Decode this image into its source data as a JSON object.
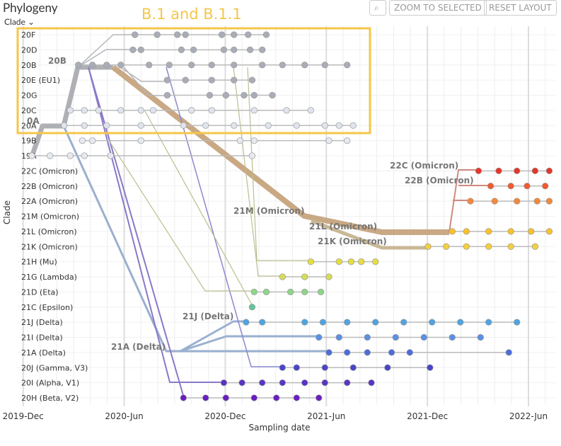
{
  "chart_data": {
    "type": "scatter",
    "title": "Phylogeny",
    "selector_label": "Clade",
    "buttons": [
      "ZOOM TO SELECTED",
      "RESET LAYOUT"
    ],
    "xlabel": "Sampling date",
    "ylabel": "Clade",
    "highlight_label": "B.1 and B.1.1",
    "branch_labels": [
      "20B",
      "0A",
      "21M (Omicron)",
      "21L (Omicron)",
      "21K (Omicron)",
      "22C (Omicron)",
      "22B (Omicron)",
      "21J (Delta)",
      "21A (Delta)"
    ],
    "xlim": [
      2019.89,
      2022.55
    ],
    "xticks": [
      {
        "value": 2019.917,
        "label": "2019-Dec"
      },
      {
        "value": 2020.417,
        "label": "2020-Jun"
      },
      {
        "value": 2020.917,
        "label": "2020-Dec"
      },
      {
        "value": 2021.417,
        "label": "2021-Jun"
      },
      {
        "value": 2021.917,
        "label": "2021-Dec"
      },
      {
        "value": 2022.417,
        "label": "2022-Jun"
      }
    ],
    "grid": true,
    "series": [
      {
        "name": "20F",
        "color": "#a9adb8",
        "x": [
          2020.47,
          2020.58,
          2020.68,
          2020.72,
          2020.9,
          2020.96,
          2021.03,
          2021.12
        ]
      },
      {
        "name": "20D",
        "color": "#a9adb8",
        "x": [
          2020.46,
          2020.5,
          2020.7,
          2020.76,
          2020.91,
          2020.96,
          2021.04,
          2021.1
        ]
      },
      {
        "name": "20B",
        "color": "#a9adb8",
        "x": [
          2020.19,
          2020.26,
          2020.33,
          2020.4,
          2020.54,
          2020.64,
          2020.75,
          2020.85,
          2020.96,
          2021.1,
          2021.2,
          2021.31,
          2021.41,
          2021.52
        ]
      },
      {
        "name": "20E (EU1)",
        "color": "#a9adb8",
        "x": [
          2020.63,
          2020.72,
          2020.85,
          2020.96,
          2021.05
        ]
      },
      {
        "name": "20G",
        "color": "#a9adb8",
        "x": [
          2020.63,
          2020.84,
          2020.92,
          2021.01,
          2021.06,
          2021.15
        ]
      },
      {
        "name": "20C",
        "color": "#dfe4ec",
        "x": [
          2020.15,
          2020.22,
          2020.29,
          2020.4,
          2020.5,
          2020.56,
          2020.75,
          2020.85,
          2021.06,
          2021.22,
          2021.34
        ]
      },
      {
        "name": "20A",
        "color": "#dfe4ec",
        "x": [
          2020.12,
          2020.22,
          2020.33,
          2020.5,
          2020.71,
          2020.82,
          2020.96,
          2021.13,
          2021.27,
          2021.41,
          2021.48,
          2021.55
        ]
      },
      {
        "name": "19B",
        "color": "#e6eaf0",
        "x": [
          2020.21,
          2020.26,
          2020.5,
          2020.99,
          2021.06,
          2021.43,
          2021.52
        ]
      },
      {
        "name": "19A",
        "color": "#e6eaf0",
        "x": [
          2019.96,
          2020.05,
          2020.15,
          2020.22,
          2020.35,
          2021.05
        ]
      },
      {
        "name": "22C (Omicron)",
        "color": "#e6352a",
        "x": [
          2022.17,
          2022.27,
          2022.36,
          2022.45,
          2022.52
        ]
      },
      {
        "name": "22B (Omicron)",
        "color": "#ef5a2e",
        "x": [
          2022.23,
          2022.33,
          2022.41,
          2022.5
        ]
      },
      {
        "name": "22A (Omicron)",
        "color": "#f4873a",
        "x": [
          2022.13,
          2022.25,
          2022.36,
          2022.46,
          2022.52
        ]
      },
      {
        "name": "21M (Omicron)",
        "color": "#f6b136",
        "x": []
      },
      {
        "name": "21L (Omicron)",
        "color": "#f7c22c",
        "x": [
          2022.04,
          2022.11,
          2022.22,
          2022.33,
          2022.43,
          2022.52
        ]
      },
      {
        "name": "21K (Omicron)",
        "color": "#f2cf3e",
        "x": [
          2021.92,
          2022.01,
          2022.11,
          2022.22,
          2022.33,
          2022.45
        ]
      },
      {
        "name": "21H (Mu)",
        "color": "#e5de3f",
        "x": [
          2021.34,
          2021.48,
          2021.54,
          2021.59,
          2021.66
        ]
      },
      {
        "name": "21G (Lambda)",
        "color": "#d6dd58",
        "x": [
          2021.2,
          2021.31,
          2021.43
        ]
      },
      {
        "name": "21D (Eta)",
        "color": "#8ed48a",
        "x": [
          2021.06,
          2021.12,
          2021.24,
          2021.31,
          2021.39
        ]
      },
      {
        "name": "21C (Epsilon)",
        "color": "#66c49a",
        "x": [
          2021.05
        ]
      },
      {
        "name": "21J (Delta)",
        "color": "#4fa3e0",
        "x": [
          2021.02,
          2021.1,
          2021.31,
          2021.4,
          2021.52,
          2021.66,
          2021.8,
          2021.94,
          2022.08,
          2022.22,
          2022.36
        ]
      },
      {
        "name": "21I (Delta)",
        "color": "#5a8fe6",
        "x": [
          2021.38,
          2021.48,
          2021.62,
          2021.76,
          2021.9,
          2022.04,
          2022.18
        ]
      },
      {
        "name": "21A (Delta)",
        "color": "#4c6ddc",
        "x": [
          2021.43,
          2021.52,
          2021.62,
          2021.74,
          2021.83,
          2022.32
        ]
      },
      {
        "name": "20J (Gamma, V3)",
        "color": "#4a45c8",
        "x": [
          2021.2,
          2021.27,
          2021.41,
          2021.55,
          2021.72,
          2021.93
        ]
      },
      {
        "name": "20I (Alpha, V1)",
        "color": "#5a33c6",
        "x": [
          2020.91,
          2021.0,
          2021.1,
          2021.2,
          2021.31,
          2021.41,
          2021.52,
          2021.64
        ]
      },
      {
        "name": "20H (Beta, V2)",
        "color": "#6a1ec0",
        "x": [
          2020.71,
          2020.82,
          2020.92,
          2021.06,
          2021.17,
          2021.27,
          2021.38
        ]
      }
    ]
  }
}
